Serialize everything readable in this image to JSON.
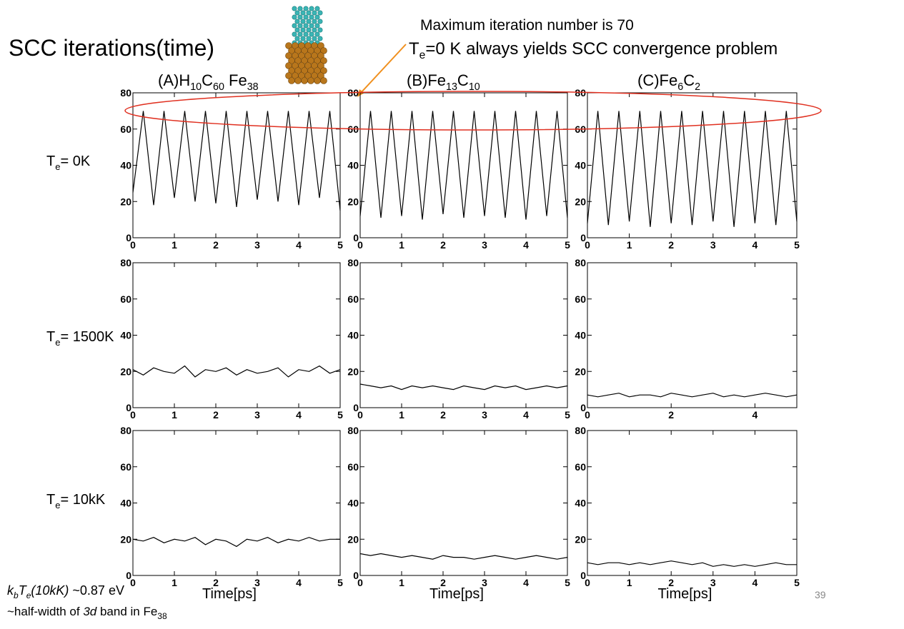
{
  "title": "SCC iterations(time)",
  "annotation": {
    "line1": "Maximum iteration number is 70",
    "line2": [
      "T",
      "e",
      "=0 K always yields SCC convergence problem"
    ]
  },
  "columns": [
    {
      "label": "(A)",
      "formula": [
        "H",
        "10",
        "C",
        "60",
        " Fe",
        "38"
      ]
    },
    {
      "label": "(B)",
      "formula": [
        "Fe",
        "13",
        "C",
        "10"
      ]
    },
    {
      "label": "(C)",
      "formula": [
        "Fe",
        "6",
        "C",
        "2"
      ]
    }
  ],
  "rows": [
    [
      "T",
      "e",
      "= 0K"
    ],
    [
      "T",
      "e",
      "= 1500K"
    ],
    [
      "T",
      "e",
      "= 10kK"
    ]
  ],
  "x_label": "Time[ps]",
  "notes": [
    [
      "k",
      "b",
      "T",
      "e",
      "(10kK)",
      " ~0.87 eV"
    ],
    [
      "~half-width of ",
      "3d",
      " band in Fe",
      "38"
    ]
  ],
  "page_number": "39",
  "chart_data": [
    {
      "type": "line",
      "color": "#000000",
      "xlim": [
        0,
        5
      ],
      "ylim": [
        0,
        80
      ],
      "xticks": [
        0,
        1,
        2,
        3,
        4,
        5
      ],
      "yticks": [
        0,
        20,
        40,
        60,
        80
      ],
      "x": [
        0,
        0.25,
        0.5,
        0.75,
        1,
        1.25,
        1.5,
        1.75,
        2,
        2.25,
        2.5,
        2.75,
        3,
        3.25,
        3.5,
        3.75,
        4,
        4.25,
        4.5,
        4.75,
        5
      ],
      "values": [
        25,
        70,
        18,
        70,
        22,
        70,
        20,
        70,
        19,
        70,
        17,
        70,
        21,
        70,
        20,
        70,
        18,
        70,
        22,
        70,
        15
      ]
    },
    {
      "type": "line",
      "color": "#000000",
      "xlim": [
        0,
        5
      ],
      "ylim": [
        0,
        80
      ],
      "xticks": [
        0,
        1,
        2,
        3,
        4,
        5
      ],
      "yticks": [
        0,
        20,
        40,
        60,
        80
      ],
      "x": [
        0,
        0.25,
        0.5,
        0.75,
        1,
        1.25,
        1.5,
        1.75,
        2,
        2.25,
        2.5,
        2.75,
        3,
        3.25,
        3.5,
        3.75,
        4,
        4.25,
        4.5,
        4.75,
        5
      ],
      "values": [
        12,
        70,
        11,
        70,
        12,
        70,
        10,
        70,
        13,
        70,
        11,
        70,
        12,
        70,
        11,
        70,
        10,
        70,
        12,
        70,
        11
      ]
    },
    {
      "type": "line",
      "color": "#000000",
      "xlim": [
        0,
        5
      ],
      "ylim": [
        0,
        80
      ],
      "xticks": [
        0,
        1,
        2,
        3,
        4,
        5
      ],
      "yticks": [
        0,
        20,
        40,
        60,
        80
      ],
      "x": [
        0,
        0.25,
        0.5,
        0.75,
        1,
        1.25,
        1.5,
        1.75,
        2,
        2.25,
        2.5,
        2.75,
        3,
        3.25,
        3.5,
        3.75,
        4,
        4.25,
        4.5,
        4.75,
        5
      ],
      "values": [
        8,
        70,
        7,
        70,
        9,
        70,
        6,
        70,
        8,
        70,
        7,
        70,
        9,
        70,
        6,
        70,
        8,
        70,
        7,
        70,
        9
      ]
    },
    {
      "type": "line",
      "color": "#000000",
      "xlim": [
        0,
        5
      ],
      "ylim": [
        0,
        80
      ],
      "xticks": [
        0,
        1,
        2,
        3,
        4,
        5
      ],
      "yticks": [
        0,
        20,
        40,
        60,
        80
      ],
      "x": [
        0,
        0.25,
        0.5,
        0.75,
        1,
        1.25,
        1.5,
        1.75,
        2,
        2.25,
        2.5,
        2.75,
        3,
        3.25,
        3.5,
        3.75,
        4,
        4.25,
        4.5,
        4.75,
        5
      ],
      "values": [
        21,
        18,
        22,
        20,
        19,
        23,
        17,
        21,
        20,
        22,
        18,
        21,
        19,
        20,
        22,
        17,
        21,
        20,
        23,
        19,
        21
      ]
    },
    {
      "type": "line",
      "color": "#000000",
      "xlim": [
        0,
        5
      ],
      "ylim": [
        0,
        80
      ],
      "xticks": [
        0,
        1,
        2,
        3,
        4,
        5
      ],
      "yticks": [
        0,
        20,
        40,
        60,
        80
      ],
      "x": [
        0,
        0.25,
        0.5,
        0.75,
        1,
        1.25,
        1.5,
        1.75,
        2,
        2.25,
        2.5,
        2.75,
        3,
        3.25,
        3.5,
        3.75,
        4,
        4.25,
        4.5,
        4.75,
        5
      ],
      "values": [
        13,
        12,
        11,
        12,
        10,
        12,
        11,
        12,
        11,
        10,
        12,
        11,
        10,
        12,
        11,
        12,
        10,
        11,
        12,
        11,
        12
      ]
    },
    {
      "type": "line",
      "color": "#000000",
      "xlim": [
        0,
        5
      ],
      "ylim": [
        0,
        80
      ],
      "xticks": [
        0,
        2,
        4
      ],
      "yticks": [
        0,
        20,
        40,
        60,
        80
      ],
      "x": [
        0,
        0.25,
        0.5,
        0.75,
        1,
        1.25,
        1.5,
        1.75,
        2,
        2.25,
        2.5,
        2.75,
        3,
        3.25,
        3.5,
        3.75,
        4,
        4.25,
        4.5,
        4.75,
        5
      ],
      "values": [
        7,
        6,
        7,
        8,
        6,
        7,
        7,
        6,
        8,
        7,
        6,
        7,
        8,
        6,
        7,
        6,
        7,
        8,
        7,
        6,
        7
      ]
    },
    {
      "type": "line",
      "color": "#000000",
      "xlim": [
        0,
        5
      ],
      "ylim": [
        0,
        80
      ],
      "xticks": [
        0,
        1,
        2,
        3,
        4,
        5
      ],
      "yticks": [
        0,
        20,
        40,
        60,
        80
      ],
      "x": [
        0,
        0.25,
        0.5,
        0.75,
        1,
        1.25,
        1.5,
        1.75,
        2,
        2.25,
        2.5,
        2.75,
        3,
        3.25,
        3.5,
        3.75,
        4,
        4.25,
        4.5,
        4.75,
        5
      ],
      "values": [
        20,
        19,
        21,
        18,
        20,
        19,
        21,
        17,
        20,
        19,
        16,
        20,
        19,
        21,
        18,
        20,
        19,
        21,
        19,
        20,
        20
      ]
    },
    {
      "type": "line",
      "color": "#000000",
      "xlim": [
        0,
        5
      ],
      "ylim": [
        0,
        80
      ],
      "xticks": [
        0,
        1,
        2,
        3,
        4,
        5
      ],
      "yticks": [
        0,
        20,
        40,
        60,
        80
      ],
      "x": [
        0,
        0.25,
        0.5,
        0.75,
        1,
        1.25,
        1.5,
        1.75,
        2,
        2.25,
        2.5,
        2.75,
        3,
        3.25,
        3.5,
        3.75,
        4,
        4.25,
        4.5,
        4.75,
        5
      ],
      "values": [
        12,
        11,
        12,
        11,
        10,
        11,
        10,
        9,
        11,
        10,
        10,
        9,
        10,
        11,
        10,
        9,
        10,
        11,
        10,
        9,
        10
      ]
    },
    {
      "type": "line",
      "color": "#000000",
      "xlim": [
        0,
        5
      ],
      "ylim": [
        0,
        80
      ],
      "xticks": [
        0,
        1,
        2,
        3,
        4,
        5
      ],
      "yticks": [
        0,
        20,
        40,
        60,
        80
      ],
      "x": [
        0,
        0.25,
        0.5,
        0.75,
        1,
        1.25,
        1.5,
        1.75,
        2,
        2.25,
        2.5,
        2.75,
        3,
        3.25,
        3.5,
        3.75,
        4,
        4.25,
        4.5,
        4.75,
        5
      ],
      "values": [
        7,
        6,
        7,
        7,
        6,
        7,
        6,
        7,
        8,
        7,
        6,
        7,
        5,
        6,
        5,
        6,
        5,
        6,
        7,
        6,
        6
      ]
    }
  ]
}
